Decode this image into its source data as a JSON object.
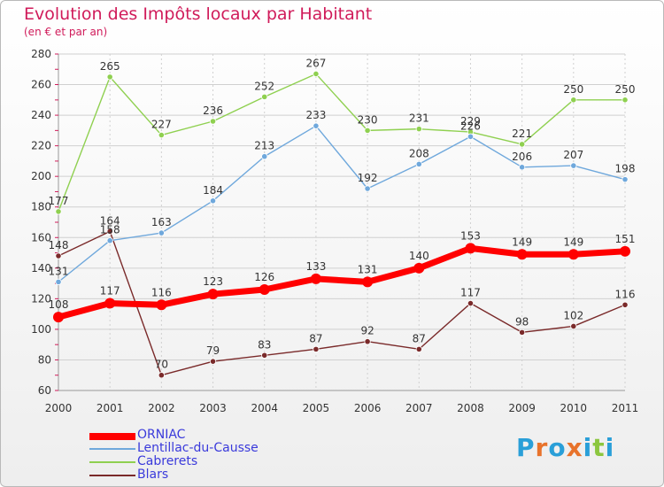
{
  "title": "Evolution des Impôts locaux par Habitant",
  "subtitle": "(en € et par an)",
  "brand": [
    "P",
    "r",
    "o",
    "x",
    "i",
    "t",
    "i"
  ],
  "brand_colors": [
    "#2a9fd8",
    "#e8732b",
    "#2a9fd8",
    "#e8732b",
    "#2a9fd8",
    "#8cc63f",
    "#2a9fd8"
  ],
  "colors": {
    "title": "#d01b5a",
    "axis_text": "#333333",
    "grid": "#d0d0d0",
    "legend_text": "#3a3adb"
  },
  "chart_data": {
    "type": "line",
    "x": [
      "2000",
      "2001",
      "2002",
      "2003",
      "2004",
      "2005",
      "2006",
      "2007",
      "2008",
      "2009",
      "2010",
      "2011"
    ],
    "ylim": [
      60,
      280
    ],
    "yticks": [
      60,
      80,
      100,
      120,
      140,
      160,
      180,
      200,
      220,
      240,
      260,
      280
    ],
    "grid": true,
    "legend": "bottom-left",
    "series": [
      {
        "name": "ORNIAC",
        "color": "#ff0000",
        "values": [
          108,
          117,
          116,
          123,
          126,
          133,
          131,
          140,
          153,
          149,
          149,
          151
        ]
      },
      {
        "name": "Lentillac-du-Causse",
        "color": "#6fa8dc",
        "values": [
          131,
          158,
          163,
          184,
          213,
          233,
          192,
          208,
          226,
          206,
          207,
          198
        ]
      },
      {
        "name": "Cabrerets",
        "color": "#8fd050",
        "values": [
          177,
          265,
          227,
          236,
          252,
          267,
          230,
          231,
          229,
          221,
          250,
          250
        ]
      },
      {
        "name": "Blars",
        "color": "#7a2a2a",
        "values": [
          148,
          164,
          70,
          79,
          83,
          87,
          92,
          87,
          117,
          98,
          102,
          116
        ]
      }
    ]
  }
}
